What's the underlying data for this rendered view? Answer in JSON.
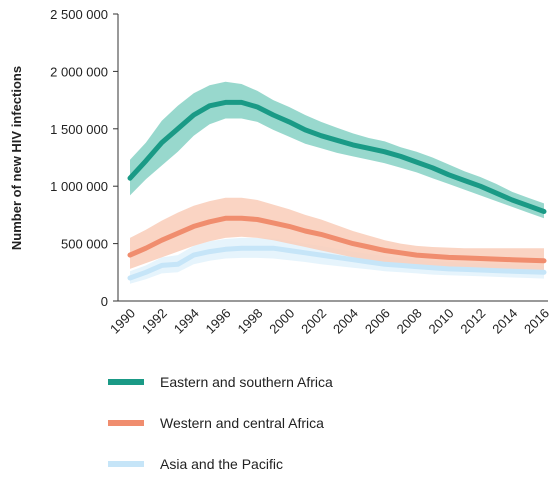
{
  "chart_data": {
    "type": "line",
    "ylabel": "Number of new HIV infections",
    "xlabel": "",
    "ylim": [
      0,
      2500000
    ],
    "yticks": [
      {
        "value": 0,
        "label": "0"
      },
      {
        "value": 500000,
        "label": "500 000"
      },
      {
        "value": 1000000,
        "label": "1 000 000"
      },
      {
        "value": 1500000,
        "label": "1 500 000"
      },
      {
        "value": 2000000,
        "label": "2 000 000"
      },
      {
        "value": 2500000,
        "label": "2 500 000"
      }
    ],
    "xlim": [
      1990,
      2016
    ],
    "xticks": [
      "1990",
      "1992",
      "1994",
      "1996",
      "1998",
      "2000",
      "2002",
      "2004",
      "2006",
      "2008",
      "2010",
      "2012",
      "2014",
      "2016"
    ],
    "grid": false,
    "legend_position": "bottom",
    "x": [
      1990,
      1991,
      1992,
      1993,
      1994,
      1995,
      1996,
      1997,
      1998,
      1999,
      2000,
      2001,
      2002,
      2003,
      2004,
      2005,
      2006,
      2007,
      2008,
      2009,
      2010,
      2011,
      2012,
      2013,
      2014,
      2015,
      2016
    ],
    "series": [
      {
        "name": "Eastern and southern Africa",
        "color": "#1a9a86",
        "band_color": "#86d1c4",
        "values": [
          1070000,
          1220000,
          1380000,
          1500000,
          1620000,
          1700000,
          1730000,
          1730000,
          1690000,
          1620000,
          1560000,
          1490000,
          1440000,
          1400000,
          1360000,
          1330000,
          1300000,
          1260000,
          1210000,
          1160000,
          1100000,
          1050000,
          1000000,
          940000,
          880000,
          830000,
          780000
        ],
        "lower": [
          920000,
          1060000,
          1180000,
          1300000,
          1440000,
          1540000,
          1590000,
          1590000,
          1560000,
          1490000,
          1430000,
          1370000,
          1330000,
          1290000,
          1260000,
          1230000,
          1200000,
          1160000,
          1120000,
          1070000,
          1020000,
          970000,
          920000,
          870000,
          820000,
          770000,
          720000
        ],
        "upper": [
          1230000,
          1380000,
          1570000,
          1700000,
          1810000,
          1880000,
          1910000,
          1890000,
          1830000,
          1750000,
          1690000,
          1620000,
          1560000,
          1510000,
          1460000,
          1420000,
          1390000,
          1340000,
          1300000,
          1250000,
          1190000,
          1130000,
          1080000,
          1020000,
          950000,
          900000,
          850000
        ]
      },
      {
        "name": "Western and central Africa",
        "color": "#f08d6e",
        "band_color": "#f9cdb8",
        "values": [
          400000,
          460000,
          530000,
          590000,
          650000,
          690000,
          720000,
          720000,
          710000,
          680000,
          650000,
          610000,
          580000,
          540000,
          500000,
          470000,
          440000,
          420000,
          400000,
          390000,
          380000,
          375000,
          370000,
          365000,
          360000,
          355000,
          350000
        ],
        "lower": [
          280000,
          330000,
          380000,
          430000,
          480000,
          520000,
          550000,
          560000,
          550000,
          530000,
          500000,
          470000,
          440000,
          410000,
          380000,
          350000,
          330000,
          310000,
          295000,
          285000,
          275000,
          270000,
          265000,
          260000,
          255000,
          250000,
          245000
        ],
        "upper": [
          550000,
          620000,
          700000,
          770000,
          830000,
          870000,
          900000,
          900000,
          880000,
          840000,
          800000,
          750000,
          710000,
          660000,
          610000,
          570000,
          530000,
          500000,
          480000,
          470000,
          465000,
          460000,
          460000,
          460000,
          460000,
          460000,
          460000
        ]
      },
      {
        "name": "Asia and the Pacific",
        "color": "#c6e5f8",
        "band_color": "#e2f2fc",
        "values": [
          200000,
          250000,
          310000,
          320000,
          400000,
          430000,
          450000,
          460000,
          460000,
          460000,
          440000,
          420000,
          400000,
          380000,
          360000,
          340000,
          320000,
          310000,
          300000,
          290000,
          280000,
          275000,
          270000,
          265000,
          260000,
          255000,
          250000
        ],
        "lower": [
          150000,
          190000,
          240000,
          250000,
          320000,
          350000,
          370000,
          375000,
          375000,
          370000,
          355000,
          340000,
          320000,
          305000,
          290000,
          275000,
          260000,
          250000,
          240000,
          230000,
          225000,
          220000,
          215000,
          210000,
          205000,
          200000,
          195000
        ],
        "upper": [
          260000,
          310000,
          380000,
          400000,
          480000,
          520000,
          540000,
          550000,
          550000,
          545000,
          525000,
          500000,
          480000,
          455000,
          430000,
          410000,
          390000,
          375000,
          360000,
          350000,
          340000,
          335000,
          330000,
          325000,
          320000,
          315000,
          310000
        ]
      }
    ]
  },
  "legend": [
    {
      "label": "Eastern and southern Africa",
      "color": "#1a9a86"
    },
    {
      "label": "Western and central Africa",
      "color": "#f08d6e"
    },
    {
      "label": "Asia and the Pacific",
      "color": "#c6e5f8"
    }
  ]
}
